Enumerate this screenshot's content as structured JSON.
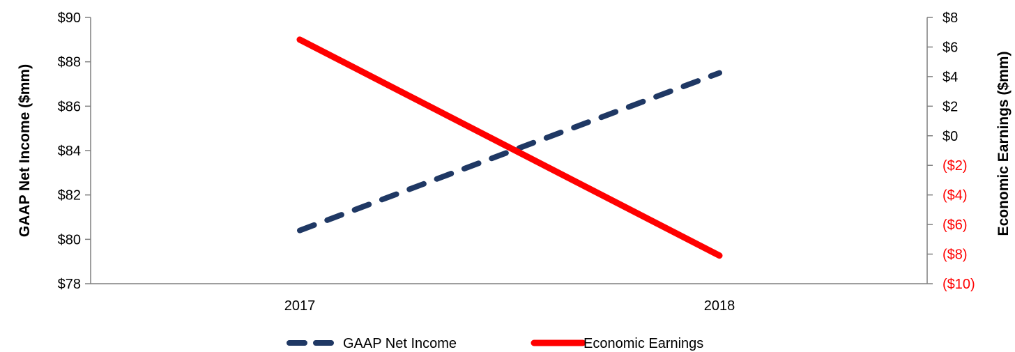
{
  "chart_data": {
    "type": "line",
    "categories": [
      "2017",
      "2018"
    ],
    "series": [
      {
        "name": "GAAP Net Income",
        "axis": "left",
        "values": [
          80.4,
          87.5
        ],
        "color": "#1f3864",
        "style": "dashed"
      },
      {
        "name": "Economic Earnings",
        "axis": "right",
        "values": [
          6.5,
          -8.1
        ],
        "color": "#ff0000",
        "style": "solid"
      }
    ],
    "y_left": {
      "label": "GAAP Net Income ($mm)",
      "range": [
        78,
        90
      ],
      "ticks": [
        78,
        80,
        82,
        84,
        86,
        88,
        90
      ],
      "tick_labels": [
        "$78",
        "$80",
        "$82",
        "$84",
        "$86",
        "$88",
        "$90"
      ]
    },
    "y_right": {
      "label": "Economic Earnings ($mm)",
      "range": [
        -10,
        8
      ],
      "ticks": [
        -10,
        -8,
        -6,
        -4,
        -2,
        0,
        2,
        4,
        6,
        8
      ],
      "tick_labels": [
        "($10)",
        "($8)",
        "($6)",
        "($4)",
        "($2)",
        "$0",
        "$2",
        "$4",
        "$6",
        "$8"
      ],
      "negative_color": "#ff0000"
    },
    "grid": false,
    "legend_position": "bottom",
    "axis_color": "#7f7f7f"
  }
}
